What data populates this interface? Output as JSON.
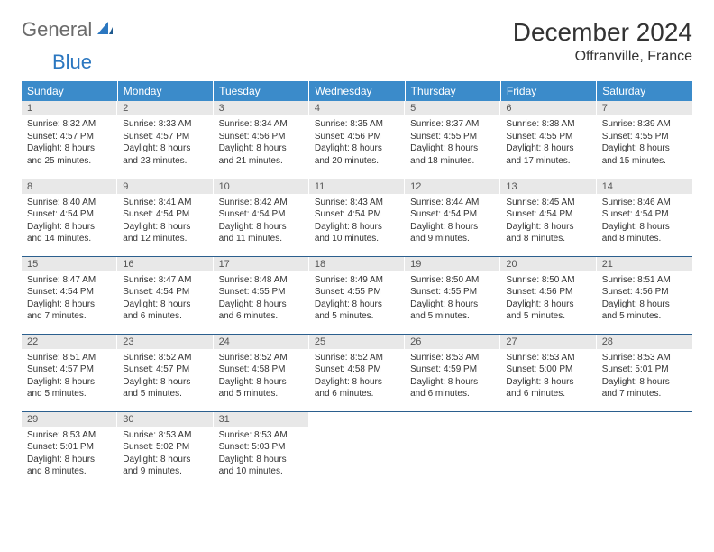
{
  "brand": {
    "general": "General",
    "blue": "Blue"
  },
  "title": "December 2024",
  "location": "Offranville, France",
  "colors": {
    "header_bg": "#3b8bca",
    "header_text": "#ffffff",
    "daynum_bg": "#e8e8e8",
    "row_border": "#2b5f8e",
    "logo_gray": "#6b6b6b",
    "logo_blue": "#2b77c0"
  },
  "weekdays": [
    "Sunday",
    "Monday",
    "Tuesday",
    "Wednesday",
    "Thursday",
    "Friday",
    "Saturday"
  ],
  "days": [
    {
      "n": "1",
      "sunrise": "8:32 AM",
      "sunset": "4:57 PM",
      "daylight": "8 hours and 25 minutes."
    },
    {
      "n": "2",
      "sunrise": "8:33 AM",
      "sunset": "4:57 PM",
      "daylight": "8 hours and 23 minutes."
    },
    {
      "n": "3",
      "sunrise": "8:34 AM",
      "sunset": "4:56 PM",
      "daylight": "8 hours and 21 minutes."
    },
    {
      "n": "4",
      "sunrise": "8:35 AM",
      "sunset": "4:56 PM",
      "daylight": "8 hours and 20 minutes."
    },
    {
      "n": "5",
      "sunrise": "8:37 AM",
      "sunset": "4:55 PM",
      "daylight": "8 hours and 18 minutes."
    },
    {
      "n": "6",
      "sunrise": "8:38 AM",
      "sunset": "4:55 PM",
      "daylight": "8 hours and 17 minutes."
    },
    {
      "n": "7",
      "sunrise": "8:39 AM",
      "sunset": "4:55 PM",
      "daylight": "8 hours and 15 minutes."
    },
    {
      "n": "8",
      "sunrise": "8:40 AM",
      "sunset": "4:54 PM",
      "daylight": "8 hours and 14 minutes."
    },
    {
      "n": "9",
      "sunrise": "8:41 AM",
      "sunset": "4:54 PM",
      "daylight": "8 hours and 12 minutes."
    },
    {
      "n": "10",
      "sunrise": "8:42 AM",
      "sunset": "4:54 PM",
      "daylight": "8 hours and 11 minutes."
    },
    {
      "n": "11",
      "sunrise": "8:43 AM",
      "sunset": "4:54 PM",
      "daylight": "8 hours and 10 minutes."
    },
    {
      "n": "12",
      "sunrise": "8:44 AM",
      "sunset": "4:54 PM",
      "daylight": "8 hours and 9 minutes."
    },
    {
      "n": "13",
      "sunrise": "8:45 AM",
      "sunset": "4:54 PM",
      "daylight": "8 hours and 8 minutes."
    },
    {
      "n": "14",
      "sunrise": "8:46 AM",
      "sunset": "4:54 PM",
      "daylight": "8 hours and 8 minutes."
    },
    {
      "n": "15",
      "sunrise": "8:47 AM",
      "sunset": "4:54 PM",
      "daylight": "8 hours and 7 minutes."
    },
    {
      "n": "16",
      "sunrise": "8:47 AM",
      "sunset": "4:54 PM",
      "daylight": "8 hours and 6 minutes."
    },
    {
      "n": "17",
      "sunrise": "8:48 AM",
      "sunset": "4:55 PM",
      "daylight": "8 hours and 6 minutes."
    },
    {
      "n": "18",
      "sunrise": "8:49 AM",
      "sunset": "4:55 PM",
      "daylight": "8 hours and 5 minutes."
    },
    {
      "n": "19",
      "sunrise": "8:50 AM",
      "sunset": "4:55 PM",
      "daylight": "8 hours and 5 minutes."
    },
    {
      "n": "20",
      "sunrise": "8:50 AM",
      "sunset": "4:56 PM",
      "daylight": "8 hours and 5 minutes."
    },
    {
      "n": "21",
      "sunrise": "8:51 AM",
      "sunset": "4:56 PM",
      "daylight": "8 hours and 5 minutes."
    },
    {
      "n": "22",
      "sunrise": "8:51 AM",
      "sunset": "4:57 PM",
      "daylight": "8 hours and 5 minutes."
    },
    {
      "n": "23",
      "sunrise": "8:52 AM",
      "sunset": "4:57 PM",
      "daylight": "8 hours and 5 minutes."
    },
    {
      "n": "24",
      "sunrise": "8:52 AM",
      "sunset": "4:58 PM",
      "daylight": "8 hours and 5 minutes."
    },
    {
      "n": "25",
      "sunrise": "8:52 AM",
      "sunset": "4:58 PM",
      "daylight": "8 hours and 6 minutes."
    },
    {
      "n": "26",
      "sunrise": "8:53 AM",
      "sunset": "4:59 PM",
      "daylight": "8 hours and 6 minutes."
    },
    {
      "n": "27",
      "sunrise": "8:53 AM",
      "sunset": "5:00 PM",
      "daylight": "8 hours and 6 minutes."
    },
    {
      "n": "28",
      "sunrise": "8:53 AM",
      "sunset": "5:01 PM",
      "daylight": "8 hours and 7 minutes."
    },
    {
      "n": "29",
      "sunrise": "8:53 AM",
      "sunset": "5:01 PM",
      "daylight": "8 hours and 8 minutes."
    },
    {
      "n": "30",
      "sunrise": "8:53 AM",
      "sunset": "5:02 PM",
      "daylight": "8 hours and 9 minutes."
    },
    {
      "n": "31",
      "sunrise": "8:53 AM",
      "sunset": "5:03 PM",
      "daylight": "8 hours and 10 minutes."
    }
  ],
  "labels": {
    "sunrise": "Sunrise:",
    "sunset": "Sunset:",
    "daylight": "Daylight:"
  },
  "layout": {
    "columns": 7,
    "rows": 5,
    "start_weekday": 0
  }
}
